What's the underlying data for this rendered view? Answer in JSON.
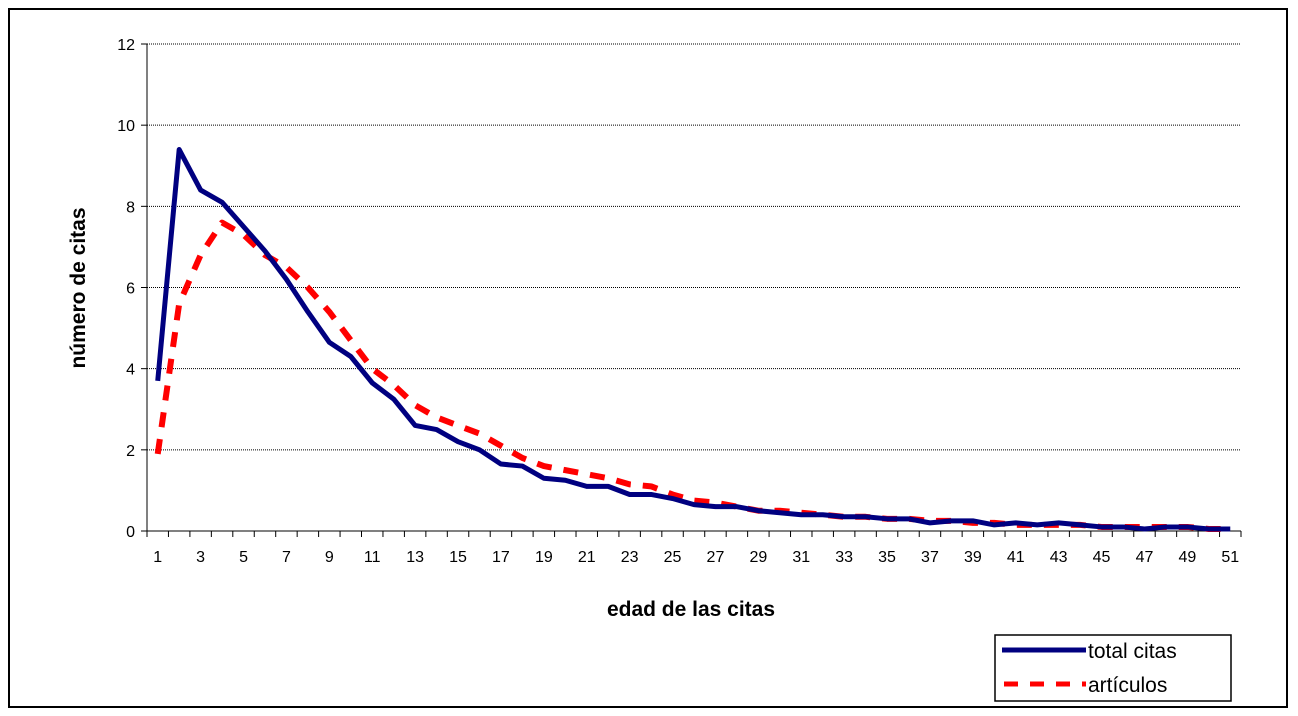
{
  "chart_data": {
    "type": "line",
    "title": "",
    "xlabel": "edad de las citas",
    "ylabel": "número de citas",
    "x": [
      1,
      2,
      3,
      4,
      5,
      6,
      7,
      8,
      9,
      10,
      11,
      12,
      13,
      14,
      15,
      16,
      17,
      18,
      19,
      20,
      21,
      22,
      23,
      24,
      25,
      26,
      27,
      28,
      29,
      30,
      31,
      32,
      33,
      34,
      35,
      36,
      37,
      38,
      39,
      40,
      41,
      42,
      43,
      44,
      45,
      46,
      47,
      48,
      49,
      50,
      51
    ],
    "x_tick_labels": [
      "1",
      "3",
      "5",
      "7",
      "9",
      "11",
      "13",
      "15",
      "17",
      "19",
      "21",
      "23",
      "25",
      "27",
      "29",
      "31",
      "33",
      "35",
      "37",
      "39",
      "41",
      "43",
      "45",
      "47",
      "49",
      "51"
    ],
    "y_tick_labels": [
      "0",
      "2",
      "4",
      "6",
      "8",
      "10",
      "12"
    ],
    "ylim": [
      0,
      12
    ],
    "grid": "horizontal",
    "legend_position": "bottom-right",
    "series": [
      {
        "name": "total citas",
        "color": "#000080",
        "style": "solid",
        "values": [
          3.7,
          9.4,
          8.4,
          8.1,
          7.5,
          6.9,
          6.2,
          5.4,
          4.65,
          4.3,
          3.65,
          3.25,
          2.6,
          2.5,
          2.2,
          2.0,
          1.65,
          1.6,
          1.3,
          1.25,
          1.1,
          1.1,
          0.9,
          0.9,
          0.8,
          0.65,
          0.6,
          0.6,
          0.5,
          0.45,
          0.4,
          0.4,
          0.35,
          0.35,
          0.3,
          0.3,
          0.2,
          0.25,
          0.25,
          0.15,
          0.2,
          0.15,
          0.2,
          0.15,
          0.1,
          0.1,
          0.05,
          0.1,
          0.1,
          0.05,
          0.05
        ]
      },
      {
        "name": "artículos",
        "color": "#ff0000",
        "style": "dashed",
        "values": [
          1.9,
          5.6,
          6.8,
          7.6,
          7.3,
          6.8,
          6.5,
          6.0,
          5.4,
          4.7,
          4.0,
          3.6,
          3.1,
          2.8,
          2.6,
          2.4,
          2.1,
          1.8,
          1.6,
          1.5,
          1.4,
          1.3,
          1.15,
          1.1,
          0.9,
          0.75,
          0.7,
          0.6,
          0.5,
          0.5,
          0.45,
          0.4,
          0.35,
          0.35,
          0.3,
          0.3,
          0.25,
          0.25,
          0.2,
          0.2,
          0.15,
          0.15,
          0.15,
          0.15,
          0.1,
          0.1,
          0.1,
          0.1,
          0.1,
          0.05,
          0.05
        ]
      }
    ]
  }
}
